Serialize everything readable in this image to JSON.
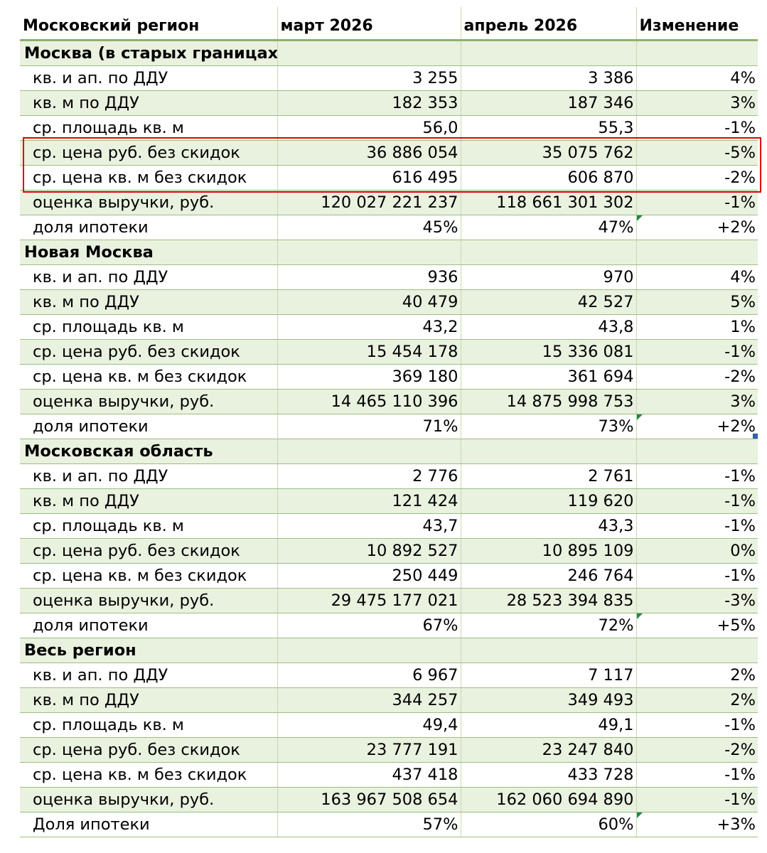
{
  "headers": [
    "Московский регион",
    "март 2026",
    "апрель 2026",
    "Изменение"
  ],
  "sections": [
    {
      "title": "Москва (в старых границах)",
      "rows": [
        {
          "label": "кв. и ап. по ДДУ",
          "march": "3 255",
          "april": "3 386",
          "change": "4%"
        },
        {
          "label": "кв. м по ДДУ",
          "march": "182 353",
          "april": "187 346",
          "change": "3%"
        },
        {
          "label": "ср. площадь кв. м",
          "march": "56,0",
          "april": "55,3",
          "change": "-1%"
        },
        {
          "label": "ср. цена руб. без скидок",
          "march": "36 886 054",
          "april": "35 075 762",
          "change": "-5%"
        },
        {
          "label": "ср. цена кв. м без скидок",
          "march": "616 495",
          "april": "606 870",
          "change": "-2%"
        },
        {
          "label": "оценка выручки, руб.",
          "march": "120 027 221 237",
          "april": "118 661 301 302",
          "change": "-1%"
        },
        {
          "label": "доля ипотеки",
          "march": "45%",
          "april": "47%",
          "change": "+2%"
        }
      ]
    },
    {
      "title": "Новая Москва",
      "rows": [
        {
          "label": "кв. и ап. по ДДУ",
          "march": "936",
          "april": "970",
          "change": "4%"
        },
        {
          "label": "кв. м по ДДУ",
          "march": "40 479",
          "april": "42 527",
          "change": "5%"
        },
        {
          "label": "ср. площадь кв. м",
          "march": "43,2",
          "april": "43,8",
          "change": "1%"
        },
        {
          "label": "ср. цена руб. без скидок",
          "march": "15 454 178",
          "april": "15 336 081",
          "change": "-1%"
        },
        {
          "label": "ср. цена кв. м без скидок",
          "march": "369 180",
          "april": "361 694",
          "change": "-2%"
        },
        {
          "label": "оценка выручки, руб.",
          "march": "14 465 110 396",
          "april": "14 875 998 753",
          "change": "3%"
        },
        {
          "label": "доля ипотеки",
          "march": "71%",
          "april": "73%",
          "change": "+2%"
        }
      ]
    },
    {
      "title": "Московская область",
      "rows": [
        {
          "label": "кв. и ап. по ДДУ",
          "march": "2 776",
          "april": "2 761",
          "change": "-1%"
        },
        {
          "label": "кв. м по ДДУ",
          "march": "121 424",
          "april": "119 620",
          "change": "-1%"
        },
        {
          "label": "ср. площадь кв. м",
          "march": "43,7",
          "april": "43,3",
          "change": "-1%"
        },
        {
          "label": "ср. цена руб. без скидок",
          "march": "10 892 527",
          "april": "10 895 109",
          "change": "0%"
        },
        {
          "label": "ср. цена кв. м без скидок",
          "march": "250 449",
          "april": "246 764",
          "change": "-1%"
        },
        {
          "label": "оценка выручки, руб.",
          "march": "29 475 177 021",
          "april": "28 523 394 835",
          "change": "-3%"
        },
        {
          "label": "доля ипотеки",
          "march": "67%",
          "april": "72%",
          "change": "+5%"
        }
      ]
    },
    {
      "title": "Весь регион",
      "rows": [
        {
          "label": "кв. и ап. по ДДУ",
          "march": "6 967",
          "april": "7 117",
          "change": "2%"
        },
        {
          "label": "кв. м по ДДУ",
          "march": "344 257",
          "april": "349 493",
          "change": "2%"
        },
        {
          "label": "ср. площадь кв. м",
          "march": "49,4",
          "april": "49,1",
          "change": "-1%"
        },
        {
          "label": "ср. цена руб. без скидок",
          "march": "23 777 191",
          "april": "23 247 840",
          "change": "-2%"
        },
        {
          "label": "ср. цена кв. м без скидок",
          "march": "437 418",
          "april": "433 728",
          "change": "-1%"
        },
        {
          "label": "оценка выручки, руб.",
          "march": "163 967 508 654",
          "april": "162 060 694 890",
          "change": "-1%"
        },
        {
          "label": "Доля ипотеки",
          "march": "57%",
          "april": "60%",
          "change": "+3%"
        }
      ]
    }
  ],
  "colors": {
    "accent_border": "#8eb26a",
    "row_fill": "#e9f1df",
    "highlight_box": "#e00000"
  }
}
